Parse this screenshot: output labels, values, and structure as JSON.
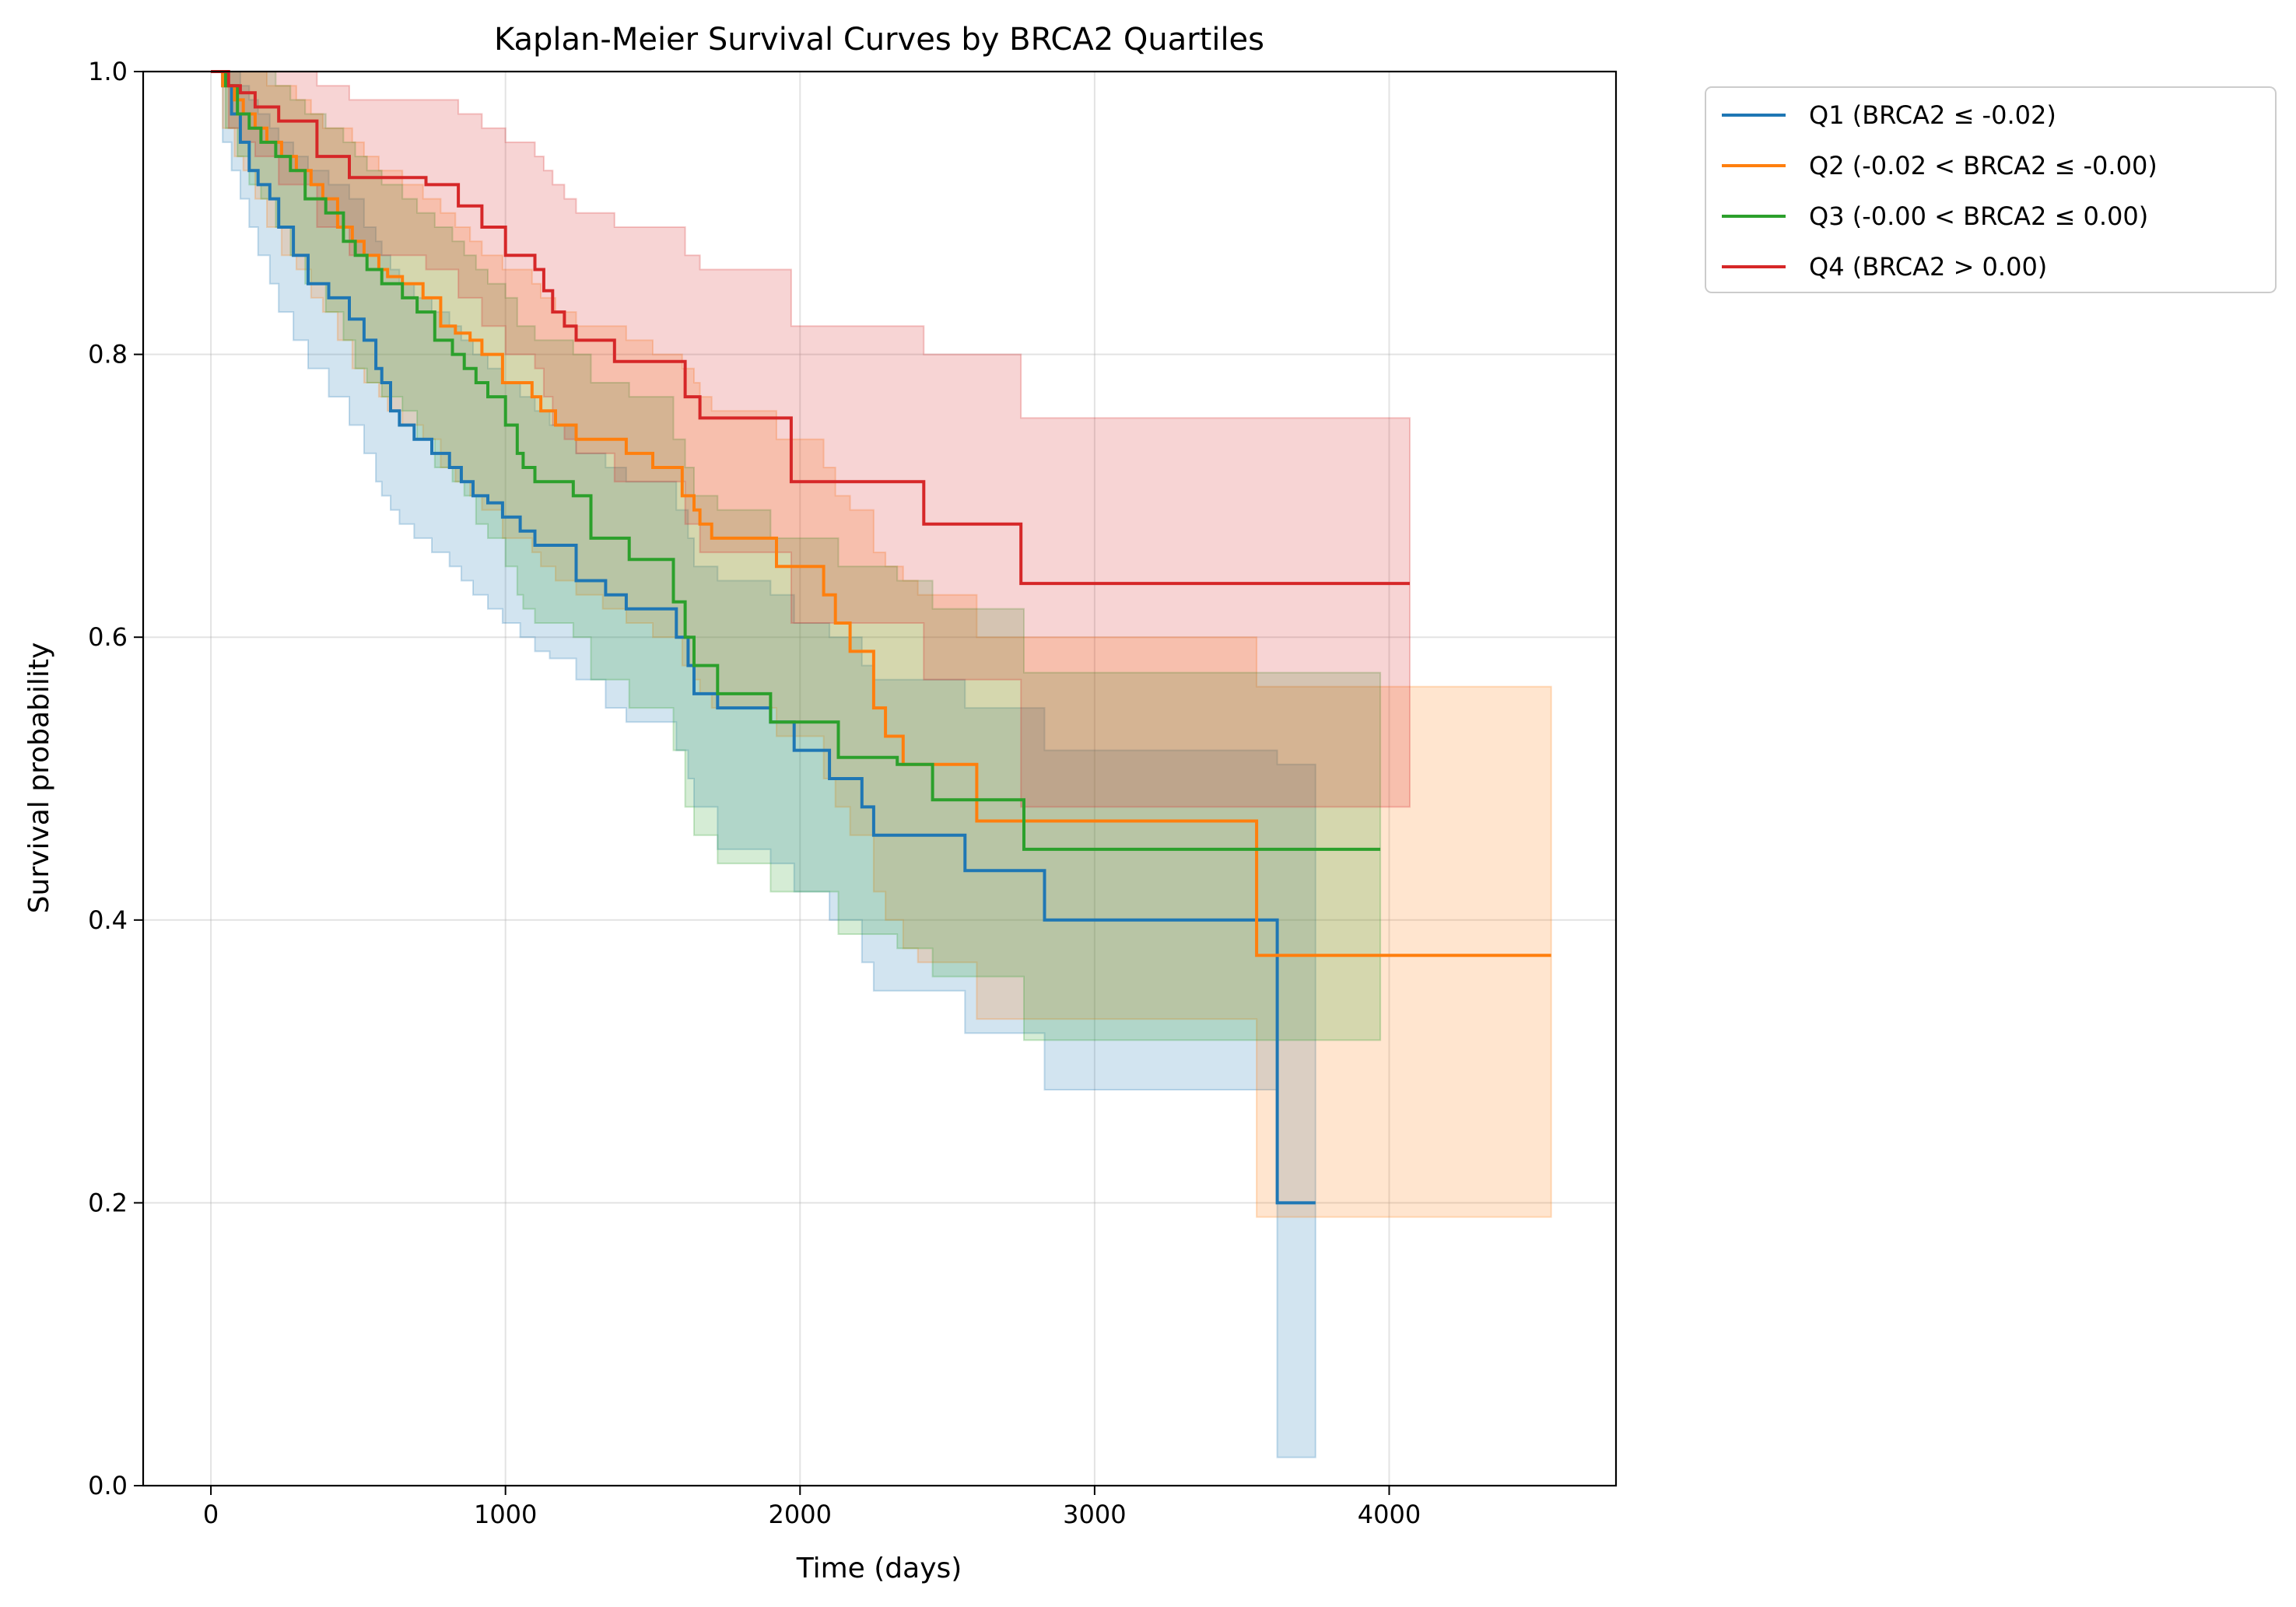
{
  "chart_data": {
    "type": "line",
    "title": "Kaplan-Meier Survival Curves by BRCA2 Quartiles",
    "xlabel": "Time (days)",
    "ylabel": "Survival probability",
    "xlim": [
      -230,
      4770
    ],
    "ylim": [
      0.0,
      1.0
    ],
    "x_ticks": [
      0,
      1000,
      2000,
      3000,
      4000
    ],
    "x_tick_labels": [
      "0",
      "1000",
      "2000",
      "3000",
      "4000"
    ],
    "y_ticks": [
      0.0,
      0.2,
      0.4,
      0.6,
      0.8,
      1.0
    ],
    "y_tick_labels": [
      "0.0",
      "0.2",
      "0.4",
      "0.6",
      "0.8",
      "1.0"
    ],
    "grid": true,
    "legend_position": "outside top-right",
    "step": "post",
    "series": [
      {
        "name": "Q1 (BRCA2 ≤ -0.02)",
        "color": "#1f77b4",
        "x": [
          0,
          40,
          70,
          100,
          130,
          160,
          200,
          230,
          280,
          330,
          400,
          470,
          520,
          560,
          580,
          610,
          640,
          690,
          750,
          810,
          850,
          890,
          940,
          990,
          1050,
          1100,
          1150,
          1240,
          1340,
          1410,
          1580,
          1620,
          1640,
          1720,
          1900,
          1980,
          2100,
          2210,
          2250,
          2560,
          2830,
          3620,
          3750
        ],
        "y": [
          1.0,
          0.99,
          0.97,
          0.95,
          0.93,
          0.92,
          0.91,
          0.89,
          0.87,
          0.85,
          0.84,
          0.825,
          0.81,
          0.79,
          0.78,
          0.76,
          0.75,
          0.74,
          0.73,
          0.72,
          0.71,
          0.7,
          0.695,
          0.685,
          0.675,
          0.665,
          0.665,
          0.64,
          0.63,
          0.62,
          0.6,
          0.58,
          0.56,
          0.55,
          0.54,
          0.52,
          0.5,
          0.48,
          0.46,
          0.435,
          0.4,
          0.2,
          0.2
        ],
        "ci_lower": [
          1.0,
          0.95,
          0.93,
          0.91,
          0.89,
          0.87,
          0.85,
          0.83,
          0.81,
          0.79,
          0.77,
          0.75,
          0.73,
          0.71,
          0.7,
          0.69,
          0.68,
          0.67,
          0.66,
          0.65,
          0.64,
          0.63,
          0.62,
          0.61,
          0.6,
          0.59,
          0.585,
          0.57,
          0.55,
          0.54,
          0.52,
          0.5,
          0.48,
          0.45,
          0.44,
          0.42,
          0.4,
          0.37,
          0.35,
          0.32,
          0.28,
          0.02,
          0.02
        ],
        "ci_upper": [
          1.0,
          1.0,
          1.0,
          0.99,
          0.98,
          0.97,
          0.96,
          0.95,
          0.94,
          0.93,
          0.92,
          0.91,
          0.89,
          0.88,
          0.87,
          0.86,
          0.85,
          0.84,
          0.83,
          0.82,
          0.81,
          0.8,
          0.79,
          0.78,
          0.77,
          0.76,
          0.75,
          0.73,
          0.72,
          0.71,
          0.69,
          0.67,
          0.65,
          0.64,
          0.63,
          0.61,
          0.6,
          0.58,
          0.57,
          0.55,
          0.52,
          0.51,
          0.51
        ]
      },
      {
        "name": "Q2 (-0.02 < BRCA2 ≤ -0.00)",
        "color": "#ff7f0e",
        "x": [
          0,
          40,
          80,
          110,
          150,
          190,
          240,
          290,
          340,
          380,
          430,
          480,
          520,
          570,
          600,
          650,
          720,
          780,
          830,
          880,
          920,
          990,
          1090,
          1120,
          1170,
          1240,
          1330,
          1410,
          1500,
          1600,
          1640,
          1660,
          1700,
          1780,
          1920,
          2080,
          2120,
          2170,
          2250,
          2290,
          2350,
          2400,
          2600,
          3550,
          4550
        ],
        "y": [
          1.0,
          0.99,
          0.98,
          0.97,
          0.96,
          0.95,
          0.94,
          0.93,
          0.92,
          0.91,
          0.89,
          0.88,
          0.87,
          0.86,
          0.855,
          0.85,
          0.84,
          0.82,
          0.815,
          0.81,
          0.8,
          0.78,
          0.77,
          0.76,
          0.75,
          0.74,
          0.74,
          0.73,
          0.72,
          0.7,
          0.69,
          0.68,
          0.67,
          0.67,
          0.65,
          0.63,
          0.61,
          0.59,
          0.55,
          0.53,
          0.51,
          0.51,
          0.47,
          0.375,
          0.375
        ],
        "ci_lower": [
          1.0,
          0.96,
          0.94,
          0.93,
          0.91,
          0.89,
          0.87,
          0.86,
          0.84,
          0.83,
          0.81,
          0.79,
          0.78,
          0.77,
          0.76,
          0.75,
          0.74,
          0.72,
          0.71,
          0.7,
          0.69,
          0.67,
          0.66,
          0.65,
          0.64,
          0.63,
          0.62,
          0.61,
          0.6,
          0.58,
          0.57,
          0.56,
          0.55,
          0.55,
          0.53,
          0.5,
          0.48,
          0.46,
          0.42,
          0.4,
          0.38,
          0.37,
          0.33,
          0.19,
          0.19
        ],
        "ci_upper": [
          1.0,
          1.0,
          1.0,
          1.0,
          1.0,
          0.99,
          0.99,
          0.98,
          0.97,
          0.96,
          0.96,
          0.95,
          0.94,
          0.93,
          0.93,
          0.92,
          0.91,
          0.9,
          0.89,
          0.88,
          0.87,
          0.86,
          0.85,
          0.84,
          0.83,
          0.82,
          0.82,
          0.81,
          0.8,
          0.79,
          0.78,
          0.77,
          0.76,
          0.76,
          0.74,
          0.72,
          0.7,
          0.69,
          0.66,
          0.65,
          0.64,
          0.63,
          0.6,
          0.565,
          0.565
        ]
      },
      {
        "name": "Q3 (-0.00 < BRCA2 ≤ 0.00)",
        "color": "#2ca02c",
        "x": [
          0,
          50,
          90,
          130,
          170,
          220,
          270,
          320,
          390,
          450,
          490,
          530,
          580,
          650,
          700,
          760,
          820,
          860,
          900,
          940,
          1000,
          1040,
          1060,
          1100,
          1230,
          1290,
          1420,
          1570,
          1610,
          1640,
          1720,
          1900,
          2130,
          2330,
          2450,
          2760,
          3970
        ],
        "y": [
          1.0,
          0.99,
          0.97,
          0.96,
          0.95,
          0.94,
          0.93,
          0.91,
          0.9,
          0.88,
          0.87,
          0.86,
          0.85,
          0.84,
          0.83,
          0.81,
          0.8,
          0.79,
          0.78,
          0.77,
          0.75,
          0.73,
          0.72,
          0.71,
          0.7,
          0.67,
          0.655,
          0.625,
          0.6,
          0.58,
          0.56,
          0.54,
          0.515,
          0.51,
          0.485,
          0.45,
          0.45
        ],
        "ci_lower": [
          1.0,
          0.96,
          0.94,
          0.92,
          0.91,
          0.89,
          0.87,
          0.85,
          0.83,
          0.81,
          0.79,
          0.78,
          0.77,
          0.76,
          0.74,
          0.72,
          0.71,
          0.7,
          0.68,
          0.67,
          0.65,
          0.63,
          0.62,
          0.61,
          0.6,
          0.57,
          0.55,
          0.52,
          0.48,
          0.46,
          0.44,
          0.42,
          0.39,
          0.38,
          0.36,
          0.315,
          0.315
        ],
        "ci_upper": [
          1.0,
          1.0,
          1.0,
          1.0,
          1.0,
          0.99,
          0.98,
          0.97,
          0.96,
          0.95,
          0.94,
          0.93,
          0.92,
          0.91,
          0.9,
          0.89,
          0.88,
          0.87,
          0.86,
          0.85,
          0.84,
          0.82,
          0.82,
          0.81,
          0.8,
          0.78,
          0.77,
          0.74,
          0.72,
          0.7,
          0.69,
          0.67,
          0.65,
          0.64,
          0.62,
          0.575,
          0.575
        ]
      },
      {
        "name": "Q4 (BRCA2 > 0.00)",
        "color": "#d62728",
        "x": [
          0,
          60,
          100,
          150,
          230,
          360,
          470,
          730,
          840,
          920,
          1000,
          1100,
          1130,
          1160,
          1200,
          1240,
          1370,
          1610,
          1660,
          1970,
          2420,
          2750,
          4070
        ],
        "y": [
          1.0,
          0.99,
          0.985,
          0.975,
          0.965,
          0.94,
          0.925,
          0.92,
          0.905,
          0.89,
          0.87,
          0.86,
          0.845,
          0.83,
          0.82,
          0.81,
          0.795,
          0.77,
          0.755,
          0.71,
          0.68,
          0.638,
          0.638
        ],
        "ci_lower": [
          1.0,
          0.96,
          0.95,
          0.94,
          0.92,
          0.89,
          0.87,
          0.86,
          0.84,
          0.82,
          0.8,
          0.79,
          0.77,
          0.75,
          0.74,
          0.73,
          0.71,
          0.68,
          0.66,
          0.61,
          0.57,
          0.48,
          0.48
        ],
        "ci_upper": [
          1.0,
          1.0,
          1.0,
          1.0,
          1.0,
          0.99,
          0.98,
          0.98,
          0.97,
          0.96,
          0.95,
          0.94,
          0.93,
          0.92,
          0.91,
          0.9,
          0.89,
          0.87,
          0.86,
          0.82,
          0.8,
          0.755,
          0.755
        ]
      }
    ]
  }
}
